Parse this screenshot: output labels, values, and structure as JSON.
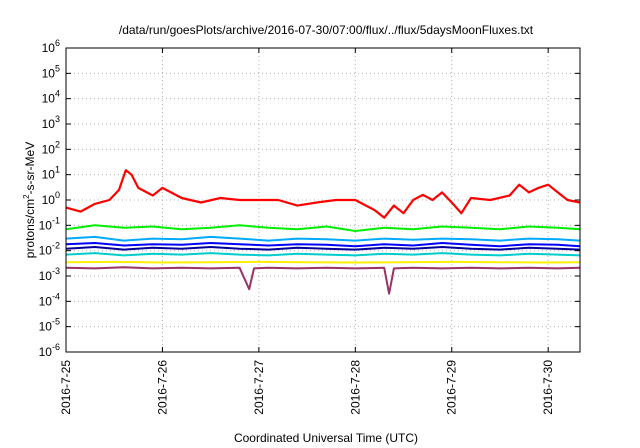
{
  "chart_data": {
    "type": "line",
    "title": "/data/run/goesPlots/archive/2016-07-30/07:00/flux/../flux/5daysMoonFluxes.txt",
    "xlabel": "Coordinated Universal Time (UTC)",
    "ylabel": {
      "base": "protons/cm",
      "sup": "2",
      "tail": "-s-sr-MeV"
    },
    "y_scale": "log",
    "ylim_exp": [
      -6,
      6
    ],
    "y_ticks": [
      {
        "base": "10",
        "exp": "-6"
      },
      {
        "base": "10",
        "exp": "-5"
      },
      {
        "base": "10",
        "exp": "-4"
      },
      {
        "base": "10",
        "exp": "-3"
      },
      {
        "base": "10",
        "exp": "-2"
      },
      {
        "base": "10",
        "exp": "-1"
      },
      {
        "base": "10",
        "exp": "0"
      },
      {
        "base": "10",
        "exp": "1"
      },
      {
        "base": "10",
        "exp": "2"
      },
      {
        "base": "10",
        "exp": "3"
      },
      {
        "base": "10",
        "exp": "4"
      },
      {
        "base": "10",
        "exp": "5"
      },
      {
        "base": "10",
        "exp": "6"
      }
    ],
    "x_ticks": [
      "2016-7-25",
      "2016-7-26",
      "2016-7-27",
      "2016-7-28",
      "2016-7-29",
      "2016-7-30"
    ],
    "x_range_days": [
      0,
      5.33
    ],
    "grid": true,
    "series": [
      {
        "color": "#ff0000",
        "x": [
          0.0,
          0.15,
          0.3,
          0.45,
          0.55,
          0.62,
          0.68,
          0.75,
          0.9,
          1.0,
          1.2,
          1.4,
          1.6,
          1.8,
          2.0,
          2.2,
          2.4,
          2.6,
          2.8,
          3.0,
          3.2,
          3.3,
          3.4,
          3.5,
          3.6,
          3.7,
          3.8,
          3.9,
          4.0,
          4.1,
          4.2,
          4.4,
          4.6,
          4.7,
          4.8,
          4.9,
          5.0,
          5.1,
          5.2,
          5.33
        ],
        "y": [
          0.5,
          0.35,
          0.7,
          1.0,
          2.5,
          15.0,
          10.0,
          3.0,
          1.5,
          3.0,
          1.2,
          0.8,
          1.2,
          1.0,
          1.0,
          1.0,
          0.6,
          0.8,
          1.0,
          1.0,
          0.4,
          0.2,
          0.6,
          0.3,
          1.0,
          1.6,
          1.0,
          2.0,
          0.8,
          0.3,
          1.2,
          1.0,
          1.5,
          4.0,
          2.0,
          3.0,
          4.0,
          2.0,
          1.0,
          0.8
        ]
      },
      {
        "color": "#00ee00",
        "x": [
          0.0,
          0.3,
          0.6,
          0.9,
          1.2,
          1.5,
          1.8,
          2.1,
          2.4,
          2.7,
          3.0,
          3.3,
          3.6,
          3.9,
          4.2,
          4.5,
          4.8,
          5.1,
          5.33
        ],
        "y": [
          0.07,
          0.1,
          0.08,
          0.09,
          0.07,
          0.08,
          0.1,
          0.08,
          0.07,
          0.09,
          0.06,
          0.08,
          0.07,
          0.09,
          0.08,
          0.07,
          0.09,
          0.08,
          0.07
        ]
      },
      {
        "color": "#00aaff",
        "x": [
          0.0,
          0.3,
          0.6,
          0.9,
          1.2,
          1.5,
          1.8,
          2.1,
          2.4,
          2.7,
          3.0,
          3.3,
          3.6,
          3.9,
          4.2,
          4.5,
          4.8,
          5.1,
          5.33
        ],
        "y": [
          0.03,
          0.035,
          0.025,
          0.03,
          0.028,
          0.035,
          0.03,
          0.025,
          0.03,
          0.028,
          0.025,
          0.03,
          0.027,
          0.03,
          0.028,
          0.025,
          0.03,
          0.028,
          0.025
        ]
      },
      {
        "color": "#0000ff",
        "x": [
          0.0,
          0.3,
          0.6,
          0.9,
          1.2,
          1.5,
          1.8,
          2.1,
          2.4,
          2.7,
          3.0,
          3.3,
          3.6,
          3.9,
          4.2,
          4.5,
          4.8,
          5.1,
          5.33
        ],
        "y": [
          0.018,
          0.02,
          0.016,
          0.018,
          0.017,
          0.02,
          0.018,
          0.016,
          0.018,
          0.017,
          0.015,
          0.018,
          0.016,
          0.02,
          0.017,
          0.015,
          0.018,
          0.017,
          0.015
        ]
      },
      {
        "color": "#000099",
        "x": [
          0.0,
          0.3,
          0.6,
          0.9,
          1.2,
          1.5,
          1.8,
          2.1,
          2.4,
          2.7,
          3.0,
          3.3,
          3.6,
          3.9,
          4.2,
          4.5,
          4.8,
          5.1,
          5.33
        ],
        "y": [
          0.012,
          0.014,
          0.011,
          0.013,
          0.012,
          0.014,
          0.012,
          0.011,
          0.013,
          0.012,
          0.011,
          0.013,
          0.012,
          0.014,
          0.012,
          0.011,
          0.013,
          0.012,
          0.011
        ]
      },
      {
        "color": "#00cccc",
        "x": [
          0.0,
          0.3,
          0.6,
          0.9,
          1.2,
          1.5,
          1.8,
          2.1,
          2.4,
          2.7,
          3.0,
          3.3,
          3.6,
          3.9,
          4.2,
          4.5,
          4.8,
          5.1,
          5.33
        ],
        "y": [
          0.007,
          0.008,
          0.0065,
          0.0075,
          0.007,
          0.008,
          0.007,
          0.0065,
          0.0075,
          0.007,
          0.0065,
          0.0075,
          0.007,
          0.008,
          0.007,
          0.0065,
          0.0075,
          0.007,
          0.0065
        ]
      },
      {
        "color": "#ffee00",
        "x": [
          0.0,
          0.5,
          1.0,
          1.5,
          2.0,
          2.5,
          3.0,
          3.5,
          4.0,
          4.5,
          5.0,
          5.33
        ],
        "y": [
          0.0035,
          0.0036,
          0.0034,
          0.0035,
          0.0036,
          0.0035,
          0.0034,
          0.0035,
          0.0036,
          0.0035,
          0.0034,
          0.0035
        ]
      },
      {
        "color": "#993366",
        "x": [
          0.0,
          0.3,
          0.6,
          0.9,
          1.2,
          1.5,
          1.8,
          1.9,
          1.95,
          2.1,
          2.4,
          2.7,
          3.0,
          3.3,
          3.35,
          3.4,
          3.6,
          3.9,
          4.2,
          4.5,
          4.8,
          5.1,
          5.33
        ],
        "y": [
          0.0021,
          0.002,
          0.0022,
          0.002,
          0.0021,
          0.002,
          0.0021,
          0.0003,
          0.002,
          0.0021,
          0.002,
          0.0021,
          0.002,
          0.0021,
          0.0002,
          0.002,
          0.0021,
          0.002,
          0.0021,
          0.002,
          0.0021,
          0.002,
          0.0021
        ]
      }
    ]
  }
}
